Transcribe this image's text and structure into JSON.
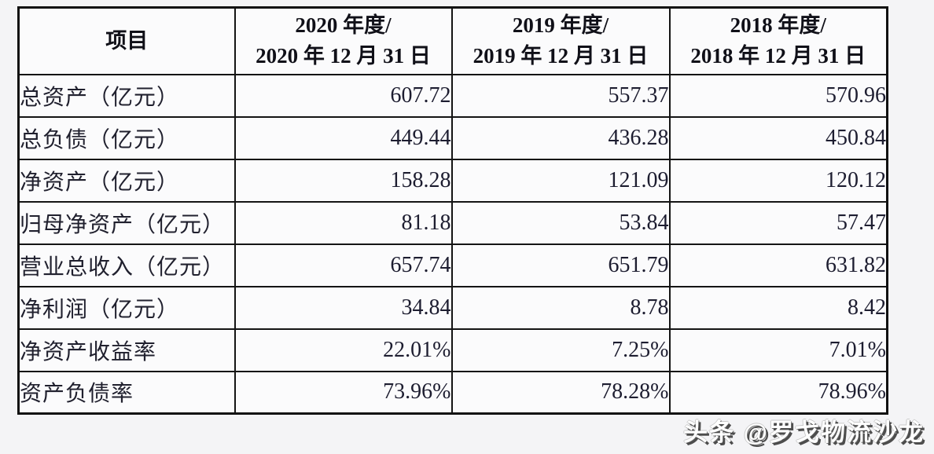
{
  "page": {
    "background_color": "#f4f4f6",
    "cell_background_color": "#fbfbfc",
    "border_color": "#141414",
    "text_color": "#20202e",
    "watermark_text_color": "#ffffff"
  },
  "watermark": {
    "text": "头条 @罗戈物流沙龙"
  },
  "table": {
    "header": {
      "item_label": "项目",
      "periods": [
        {
          "line1": "2020 年度/",
          "line2": "2020 年 12 月 31 日"
        },
        {
          "line1": "2019 年度/",
          "line2": "2019 年 12 月 31 日"
        },
        {
          "line1": "2018 年度/",
          "line2": "2018 年 12 月 31 日"
        }
      ]
    },
    "rows": [
      {
        "label": "总资产（亿元）",
        "values": [
          "607.72",
          "557.37",
          "570.96"
        ]
      },
      {
        "label": "总负债（亿元）",
        "values": [
          "449.44",
          "436.28",
          "450.84"
        ]
      },
      {
        "label": "净资产（亿元）",
        "values": [
          "158.28",
          "121.09",
          "120.12"
        ]
      },
      {
        "label": "归母净资产（亿元）",
        "values": [
          "81.18",
          "53.84",
          "57.47"
        ]
      },
      {
        "label": "营业总收入（亿元）",
        "values": [
          "657.74",
          "651.79",
          "631.82"
        ]
      },
      {
        "label": "净利润（亿元）",
        "values": [
          "34.84",
          "8.78",
          "8.42"
        ]
      },
      {
        "label": "净资产收益率",
        "values": [
          "22.01%",
          "7.25%",
          "7.01%"
        ]
      },
      {
        "label": "资产负债率",
        "values": [
          "73.96%",
          "78.28%",
          "78.96%"
        ]
      }
    ]
  },
  "chart_data": {
    "type": "table",
    "title": "",
    "columns": [
      "项目",
      "2020 年度/2020 年 12 月 31 日",
      "2019 年度/2019 年 12 月 31 日",
      "2018 年度/2018 年 12 月 31 日"
    ],
    "rows": [
      [
        "总资产（亿元）",
        607.72,
        557.37,
        570.96
      ],
      [
        "总负债（亿元）",
        449.44,
        436.28,
        450.84
      ],
      [
        "净资产（亿元）",
        158.28,
        121.09,
        120.12
      ],
      [
        "归母净资产（亿元）",
        81.18,
        53.84,
        57.47
      ],
      [
        "营业总收入（亿元）",
        657.74,
        651.79,
        631.82
      ],
      [
        "净利润（亿元）",
        34.84,
        8.78,
        8.42
      ],
      [
        "净资产收益率",
        "22.01%",
        "7.25%",
        "7.01%"
      ],
      [
        "资产负债率",
        "73.96%",
        "78.28%",
        "78.96%"
      ]
    ]
  }
}
